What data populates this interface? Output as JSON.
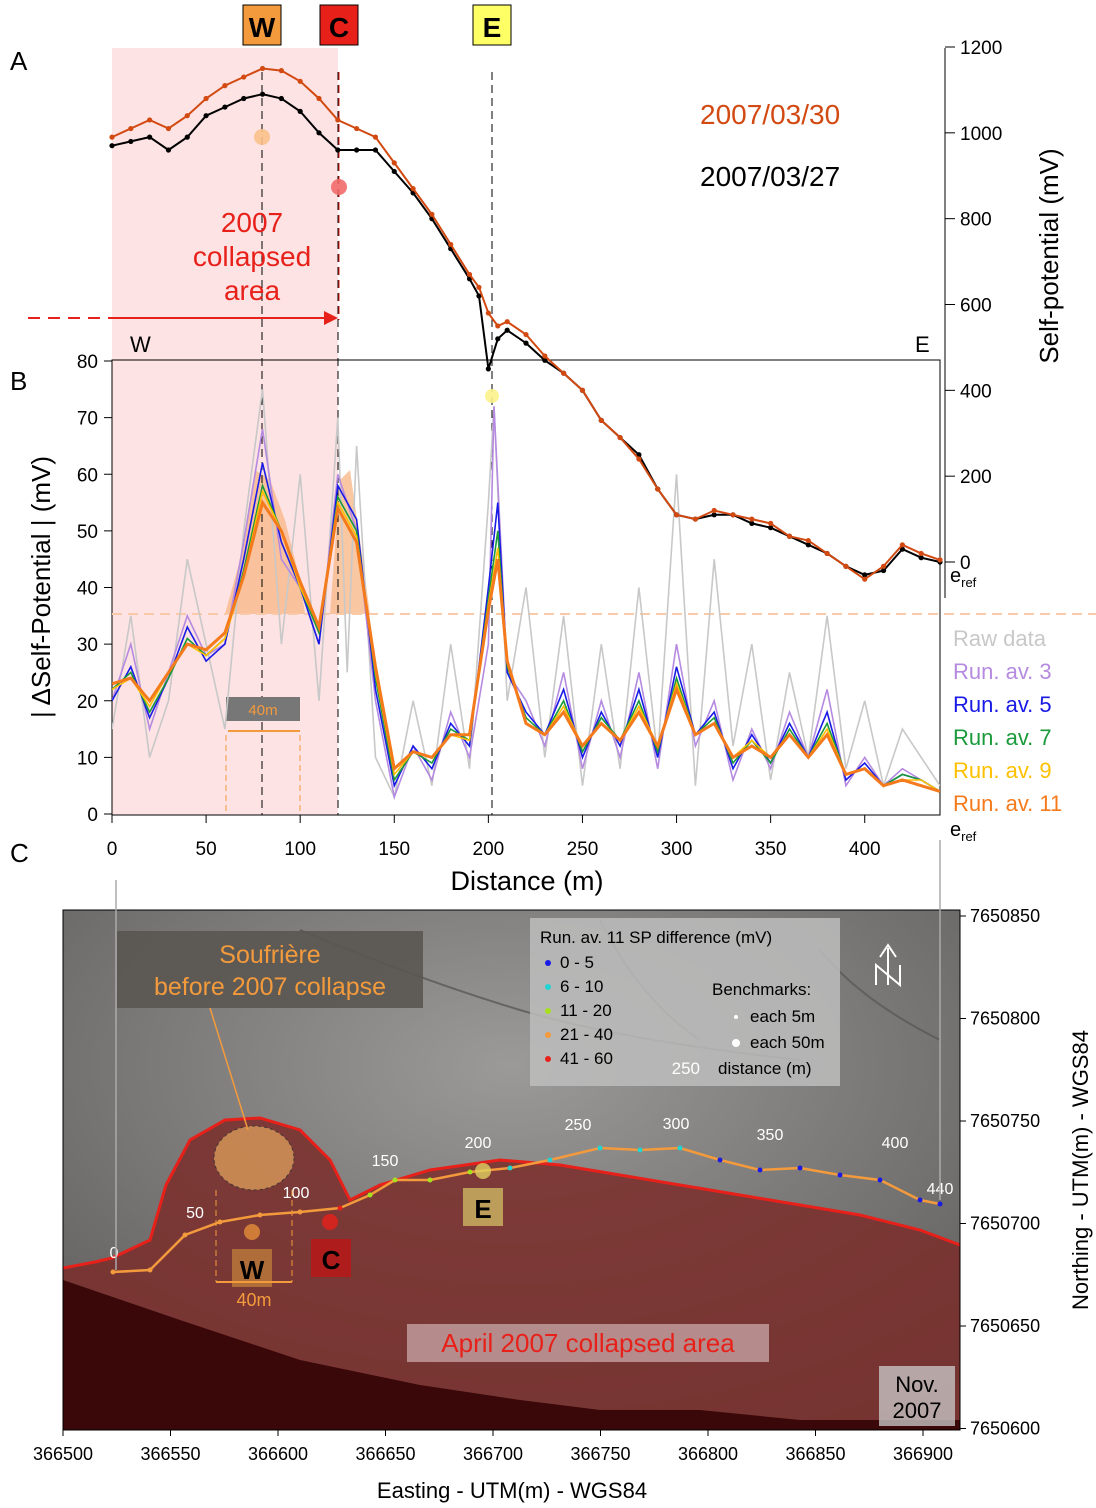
{
  "panel_labels": {
    "a": "A",
    "b": "B",
    "c": "C"
  },
  "markers": {
    "w": "W",
    "c": "C",
    "e": "E"
  },
  "colors": {
    "collapsed_fill": "#fde3e3",
    "red": "#e8201a",
    "orange": "#f39a3c",
    "yellow": "#ffff66",
    "sp_0330": "#d24a12",
    "sp_0327": "#000000",
    "raw": "#c8c8c8",
    "av3": "#b58ae0",
    "av5": "#1a1ae6",
    "av7": "#1a9a3a",
    "av9": "#ffc000",
    "av11": "#f47a1c",
    "threshold": "#f9c9a8"
  },
  "chart_data": [
    {
      "type": "line",
      "panel": "A",
      "ylabel": "Self-potential (mV)",
      "ylim": [
        -50,
        1200
      ],
      "yticks": [
        0,
        200,
        400,
        600,
        800,
        1000,
        1200
      ],
      "xlim": [
        0,
        440
      ],
      "side_labels": {
        "west": "W",
        "east": "E",
        "ref_base": "e",
        "ref_sub": "ref"
      },
      "annotation": {
        "line1": "2007",
        "line2": "collapsed",
        "line3": "area"
      },
      "series": [
        {
          "name": "2007/03/30",
          "color": "#d24a12",
          "x": [
            0,
            10,
            20,
            30,
            40,
            50,
            60,
            70,
            80,
            90,
            100,
            110,
            120,
            130,
            140,
            150,
            160,
            170,
            180,
            190,
            195,
            200,
            205,
            210,
            220,
            230,
            240,
            250,
            260,
            270,
            280,
            290,
            300,
            310,
            320,
            330,
            340,
            350,
            360,
            370,
            380,
            390,
            400,
            410,
            420,
            430,
            440
          ],
          "y": [
            990,
            1010,
            1030,
            1010,
            1040,
            1080,
            1110,
            1130,
            1150,
            1145,
            1120,
            1080,
            1030,
            1010,
            990,
            930,
            870,
            810,
            740,
            670,
            640,
            580,
            550,
            560,
            530,
            480,
            440,
            400,
            330,
            290,
            240,
            170,
            110,
            100,
            120,
            110,
            100,
            90,
            60,
            50,
            20,
            -10,
            -40,
            -10,
            40,
            20,
            5
          ]
        },
        {
          "name": "2007/03/27",
          "color": "#000000",
          "x": [
            0,
            10,
            20,
            30,
            40,
            50,
            60,
            70,
            80,
            90,
            100,
            110,
            120,
            130,
            140,
            150,
            160,
            170,
            180,
            190,
            195,
            200,
            205,
            210,
            220,
            230,
            240,
            250,
            260,
            270,
            280,
            290,
            300,
            310,
            320,
            330,
            340,
            350,
            360,
            370,
            380,
            390,
            400,
            410,
            420,
            430,
            440
          ],
          "y": [
            970,
            980,
            990,
            960,
            990,
            1040,
            1060,
            1080,
            1090,
            1080,
            1050,
            1000,
            960,
            960,
            960,
            910,
            860,
            800,
            730,
            660,
            620,
            450,
            520,
            540,
            510,
            470,
            440,
            400,
            330,
            290,
            250,
            170,
            110,
            100,
            110,
            110,
            90,
            80,
            60,
            40,
            20,
            -10,
            -30,
            -20,
            30,
            10,
            0
          ]
        }
      ]
    },
    {
      "type": "line",
      "panel": "B",
      "ylabel": "| ΔSelf-Potential | (mV)",
      "xlabel": "Distance (m)",
      "xlim": [
        0,
        440
      ],
      "ylim": [
        0,
        80
      ],
      "xticks": [
        0,
        50,
        100,
        150,
        200,
        250,
        300,
        350,
        400
      ],
      "yticks": [
        0,
        10,
        20,
        30,
        40,
        50,
        60,
        70,
        80
      ],
      "threshold": 35,
      "span_label": "40m",
      "ref_base": "e",
      "ref_sub": "ref",
      "series": [
        {
          "name": "Raw data",
          "color": "#c8c8c8",
          "x": [
            0,
            10,
            20,
            30,
            40,
            50,
            60,
            70,
            80,
            90,
            100,
            110,
            120,
            125,
            130,
            140,
            150,
            160,
            170,
            180,
            190,
            200,
            203,
            210,
            220,
            230,
            240,
            250,
            260,
            270,
            280,
            290,
            300,
            310,
            320,
            330,
            340,
            350,
            360,
            370,
            380,
            390,
            400,
            410,
            420,
            430,
            440
          ],
          "y": [
            15,
            35,
            10,
            20,
            45,
            30,
            15,
            50,
            75,
            30,
            60,
            20,
            70,
            25,
            65,
            10,
            3,
            20,
            5,
            30,
            8,
            55,
            72,
            20,
            40,
            10,
            35,
            5,
            30,
            8,
            40,
            10,
            60,
            5,
            45,
            12,
            30,
            6,
            25,
            10,
            35,
            8,
            20,
            5,
            15,
            10,
            5
          ]
        },
        {
          "name": "Run. av. 3",
          "color": "#b58ae0",
          "x": [
            0,
            10,
            20,
            30,
            40,
            50,
            60,
            70,
            80,
            90,
            100,
            110,
            120,
            130,
            140,
            150,
            160,
            170,
            180,
            190,
            200,
            203,
            210,
            220,
            230,
            240,
            250,
            260,
            270,
            280,
            290,
            300,
            310,
            320,
            330,
            340,
            350,
            360,
            370,
            380,
            390,
            400,
            410,
            420,
            430,
            440
          ],
          "y": [
            20,
            30,
            15,
            25,
            35,
            28,
            30,
            48,
            68,
            45,
            40,
            30,
            60,
            50,
            20,
            3,
            12,
            6,
            18,
            10,
            30,
            72,
            25,
            20,
            12,
            25,
            8,
            20,
            10,
            25,
            8,
            30,
            12,
            20,
            6,
            15,
            8,
            18,
            10,
            22,
            5,
            10,
            5,
            8,
            6,
            4
          ]
        },
        {
          "name": "Run. av. 5",
          "color": "#1a1ae6",
          "x": [
            0,
            10,
            20,
            30,
            40,
            50,
            60,
            70,
            80,
            90,
            100,
            110,
            120,
            130,
            140,
            150,
            160,
            170,
            180,
            190,
            200,
            205,
            210,
            220,
            230,
            240,
            250,
            260,
            270,
            280,
            290,
            300,
            310,
            320,
            330,
            340,
            350,
            360,
            370,
            380,
            390,
            400,
            410,
            420,
            430,
            440
          ],
          "y": [
            20,
            26,
            17,
            24,
            33,
            27,
            30,
            45,
            62,
            48,
            40,
            30,
            58,
            52,
            22,
            5,
            12,
            8,
            16,
            12,
            40,
            55,
            25,
            18,
            14,
            22,
            10,
            18,
            12,
            22,
            10,
            26,
            14,
            18,
            8,
            14,
            9,
            16,
            10,
            18,
            6,
            9,
            5,
            7,
            6,
            4
          ]
        },
        {
          "name": "Run. av. 7",
          "color": "#1a9a3a",
          "x": [
            0,
            10,
            20,
            30,
            40,
            50,
            60,
            70,
            80,
            90,
            100,
            110,
            120,
            130,
            140,
            150,
            160,
            170,
            180,
            190,
            200,
            205,
            210,
            220,
            230,
            240,
            250,
            260,
            270,
            280,
            290,
            300,
            310,
            320,
            330,
            340,
            350,
            360,
            370,
            380,
            390,
            400,
            410,
            420,
            430,
            440
          ],
          "y": [
            22,
            25,
            18,
            24,
            31,
            28,
            31,
            43,
            58,
            50,
            40,
            32,
            56,
            50,
            24,
            6,
            11,
            9,
            15,
            13,
            38,
            50,
            26,
            17,
            14,
            20,
            11,
            17,
            13,
            20,
            11,
            24,
            14,
            17,
            9,
            13,
            9,
            15,
            10,
            16,
            7,
            8,
            5,
            7,
            6,
            4
          ]
        },
        {
          "name": "Run. av. 9",
          "color": "#ffc000",
          "x": [
            0,
            10,
            20,
            30,
            40,
            50,
            60,
            70,
            80,
            90,
            100,
            110,
            120,
            130,
            140,
            150,
            160,
            170,
            180,
            190,
            200,
            205,
            210,
            220,
            230,
            240,
            250,
            260,
            270,
            280,
            290,
            300,
            310,
            320,
            330,
            340,
            350,
            360,
            370,
            380,
            390,
            400,
            410,
            420,
            430,
            440
          ],
          "y": [
            22,
            24,
            19,
            25,
            30,
            28,
            31,
            42,
            57,
            50,
            40,
            33,
            55,
            49,
            25,
            7,
            11,
            10,
            14,
            13,
            37,
            47,
            27,
            16,
            14,
            19,
            12,
            16,
            13,
            19,
            12,
            23,
            14,
            16,
            10,
            13,
            10,
            14,
            10,
            15,
            7,
            8,
            5,
            6,
            6,
            4
          ]
        },
        {
          "name": "Run. av. 11",
          "color": "#f47a1c",
          "x": [
            0,
            10,
            20,
            30,
            40,
            50,
            60,
            70,
            80,
            90,
            100,
            110,
            120,
            130,
            140,
            150,
            160,
            170,
            180,
            190,
            200,
            205,
            210,
            220,
            230,
            240,
            250,
            260,
            270,
            280,
            290,
            300,
            310,
            320,
            330,
            340,
            350,
            360,
            370,
            380,
            390,
            400,
            410,
            420,
            430,
            440
          ],
          "y": [
            23,
            24,
            20,
            25,
            30,
            29,
            32,
            42,
            55,
            50,
            41,
            33,
            54,
            48,
            26,
            8,
            11,
            10,
            14,
            14,
            36,
            45,
            27,
            16,
            14,
            18,
            12,
            16,
            13,
            18,
            12,
            22,
            14,
            16,
            10,
            12,
            10,
            14,
            10,
            14,
            7,
            8,
            5,
            6,
            5,
            4
          ]
        }
      ]
    }
  ],
  "map": {
    "x_axis_title": "Easting - UTM(m) - WGS84",
    "y_axis_title": "Northing - UTM(m) - WGS84",
    "x_ticks": [
      "366500",
      "366550",
      "366600",
      "366650",
      "366700",
      "366750",
      "366800",
      "366850",
      "366900"
    ],
    "y_ticks": [
      "7650850",
      "7650800",
      "7650750",
      "7650700",
      "7650650",
      "7650600"
    ],
    "legend": {
      "title": "Run. av. 11 SP difference (mV)",
      "bins": [
        {
          "label": "0 - 5",
          "color": "#1a1ae6"
        },
        {
          "label": "6 - 10",
          "color": "#22d3d3"
        },
        {
          "label": "11 - 20",
          "color": "#a8e020"
        },
        {
          "label": "21 - 40",
          "color": "#f39a3c"
        },
        {
          "label": "41 - 60",
          "color": "#e8201a"
        }
      ],
      "benchmarks_title": "Benchmarks:",
      "bench_5": "each 5m",
      "bench_50": "each 50m",
      "bench_num": "250",
      "bench_num_text": "distance (m)"
    },
    "distance_labels": [
      "0",
      "50",
      "100",
      "150",
      "200",
      "250",
      "300",
      "350",
      "400",
      "440"
    ],
    "soufriere_label": {
      "line1": "Soufrière",
      "line2": "before 2007 collapse"
    },
    "collapse_label": "April 2007 collapsed area",
    "date_stamp": {
      "line1": "Nov.",
      "line2": "2007"
    },
    "span_label": "40m",
    "north_glyph": "N"
  }
}
